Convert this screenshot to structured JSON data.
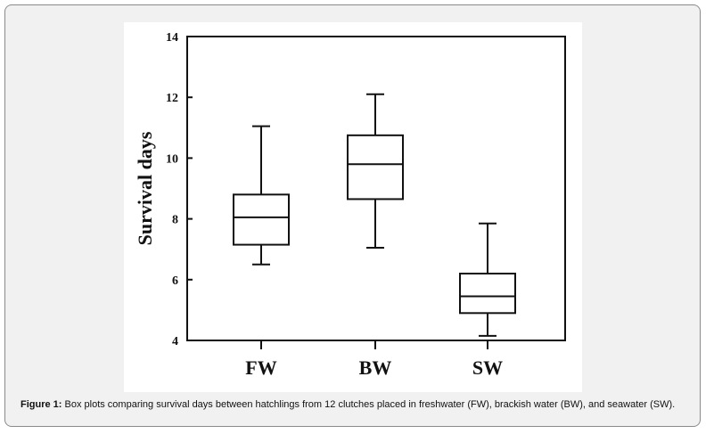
{
  "chart_data": {
    "type": "box",
    "title": "",
    "xlabel": "",
    "ylabel": "Survival days",
    "ylim": [
      4,
      14
    ],
    "yticks": [
      4,
      6,
      8,
      10,
      12,
      14
    ],
    "categories": [
      "FW",
      "BW",
      "SW"
    ],
    "boxes": [
      {
        "name": "FW",
        "min": 6.5,
        "q1": 7.15,
        "median": 8.05,
        "q3": 8.8,
        "max": 11.05
      },
      {
        "name": "BW",
        "min": 7.05,
        "q1": 8.65,
        "median": 9.8,
        "q3": 10.75,
        "max": 12.1
      },
      {
        "name": "SW",
        "min": 4.15,
        "q1": 4.9,
        "median": 5.45,
        "q3": 6.2,
        "max": 7.85
      }
    ],
    "grid": false
  },
  "caption": {
    "label": "Figure 1:",
    "text": " Box plots comparing survival days between hatchlings from 12 clutches placed in freshwater (FW), brackish water (BW), and seawater (SW)."
  }
}
